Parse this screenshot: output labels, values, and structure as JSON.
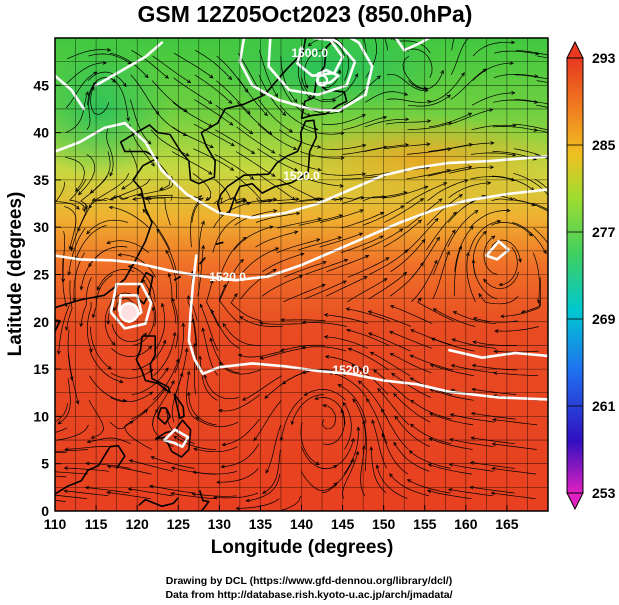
{
  "chart_data": {
    "type": "heatmap",
    "title": "GSM 12Z05Oct2023 (850.0hPa)",
    "xlabel": "Longitude (degrees)",
    "ylabel": "Latitude  (degrees)",
    "xlim": [
      110,
      170
    ],
    "ylim": [
      0,
      50
    ],
    "xticks": [
      110,
      115,
      120,
      125,
      130,
      135,
      140,
      145,
      150,
      155,
      160,
      165
    ],
    "yticks": [
      0,
      5,
      10,
      15,
      20,
      25,
      30,
      35,
      40,
      45
    ],
    "grid": true,
    "colorbar": {
      "min": 253,
      "max": 293,
      "ticks": [
        253,
        261,
        269,
        277,
        285,
        293
      ],
      "stops": [
        "#e020c0",
        "#3010c0",
        "#2070f0",
        "#00c8d0",
        "#40d060",
        "#a0dc30",
        "#f0c020",
        "#f08020",
        "#e83820"
      ]
    },
    "contours": [
      {
        "label": "1520.0",
        "lon": 131,
        "lat": 24.3
      },
      {
        "label": "1520.0",
        "lon": 146,
        "lat": 14.5
      },
      {
        "label": "1520.0",
        "lon": 140,
        "lat": 35
      },
      {
        "label": "1500.0",
        "lon": 141,
        "lat": 48
      }
    ],
    "features": [
      {
        "kind": "low",
        "lon": 119,
        "lat": 21
      },
      {
        "kind": "low",
        "lon": 142.5,
        "lat": 45.5
      },
      {
        "kind": "high",
        "lon": 164,
        "lat": 27.5
      }
    ]
  },
  "credits": {
    "line1": "Drawing by DCL (https://www.gfd-dennou.org/library/dcl/)",
    "line2": "Data from http://database.rish.kyoto-u.ac.jp/arch/jmadata/"
  }
}
